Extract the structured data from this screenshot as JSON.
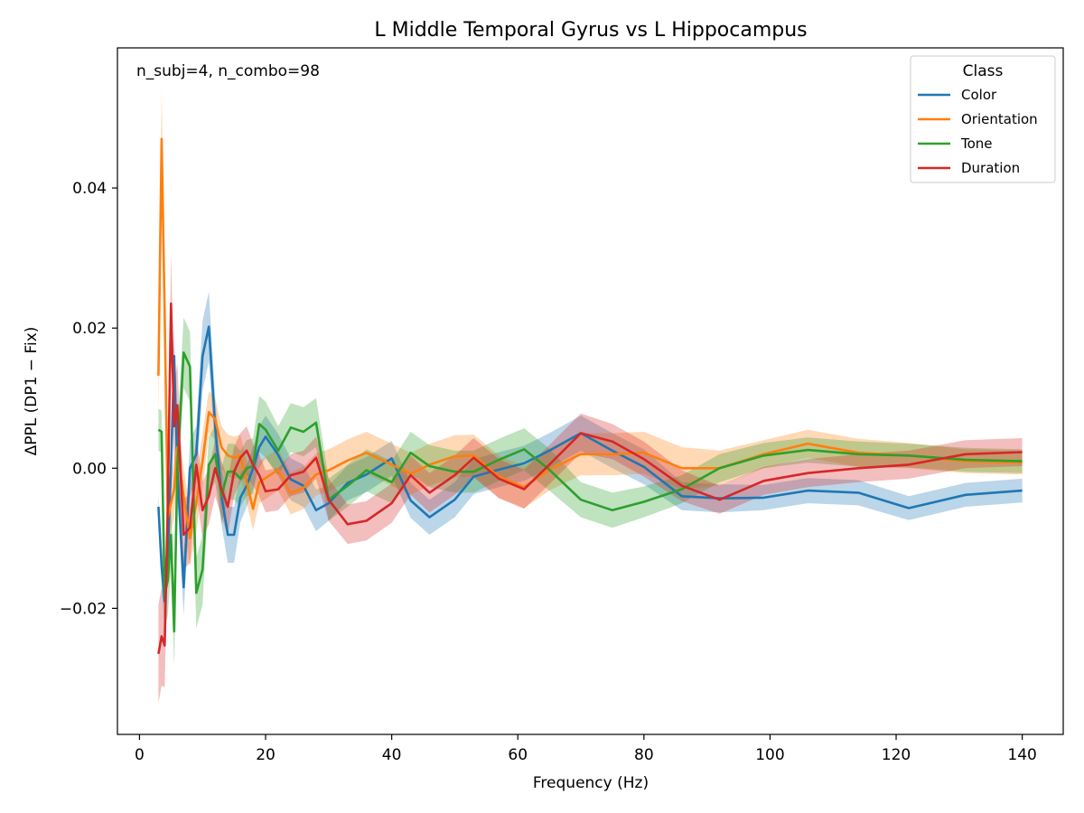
{
  "chart_data": {
    "type": "line",
    "title": "L Middle Temporal Gyrus vs L Hippocampus",
    "annotation": "n_subj=4, n_combo=98",
    "xlabel": "Frequency (Hz)",
    "ylabel": "ΔPPL (DP1 − Fix)",
    "xlim": [
      -3.5,
      146.5
    ],
    "ylim": [
      -0.038,
      0.06
    ],
    "xticks": [
      0,
      20,
      40,
      60,
      80,
      100,
      120,
      140
    ],
    "xtick_labels": [
      "0",
      "20",
      "40",
      "60",
      "80",
      "100",
      "120",
      "140"
    ],
    "yticks": [
      -0.02,
      0.0,
      0.02,
      0.04
    ],
    "ytick_labels": [
      "−0.02",
      "0.00",
      "0.02",
      "0.04"
    ],
    "grid": false,
    "legend": {
      "title": "Class",
      "placement": "top-right"
    },
    "series": [
      {
        "name": "Color",
        "color": "#1f77b4",
        "x": [
          3,
          3.5,
          4,
          4.5,
          5,
          5.5,
          6,
          7,
          8,
          9,
          10,
          11,
          12,
          13,
          14,
          15,
          16,
          17,
          18,
          19,
          20,
          22,
          24,
          26,
          28,
          30,
          33,
          36,
          40,
          43,
          46,
          50,
          53,
          57,
          61,
          65,
          70,
          75,
          80,
          86,
          92,
          99,
          106,
          114,
          122,
          131,
          140
        ],
        "y": [
          -0.0055,
          -0.014,
          -0.019,
          -0.012,
          0.0,
          0.016,
          0.0,
          -0.017,
          0.0,
          0.002,
          0.016,
          0.0202,
          0.006,
          -0.004,
          -0.0095,
          -0.0095,
          -0.0042,
          -0.0025,
          0.0,
          0.003,
          0.0045,
          0.0019,
          -0.0016,
          -0.0025,
          -0.006,
          -0.005,
          -0.0021,
          -0.0009,
          0.0014,
          -0.0046,
          -0.007,
          -0.0045,
          -0.0012,
          -0.0002,
          0.0007,
          0.0025,
          0.005,
          0.0025,
          0.0002,
          -0.004,
          -0.0043,
          -0.0042,
          -0.0032,
          -0.0035,
          -0.0057,
          -0.0038,
          -0.0032
        ],
        "band": [
          0.0017,
          0.003,
          0.004,
          0.004,
          0.004,
          0.004,
          0.004,
          0.004,
          0.004,
          0.004,
          0.005,
          0.005,
          0.004,
          0.004,
          0.004,
          0.004,
          0.0035,
          0.003,
          0.003,
          0.003,
          0.003,
          0.003,
          0.003,
          0.003,
          0.003,
          0.0025,
          0.0025,
          0.0025,
          0.0025,
          0.0025,
          0.0025,
          0.0025,
          0.0025,
          0.0025,
          0.0025,
          0.0025,
          0.0025,
          0.0025,
          0.0025,
          0.002,
          0.002,
          0.0018,
          0.0018,
          0.0018,
          0.0017,
          0.0017,
          0.0017
        ]
      },
      {
        "name": "Orientation",
        "color": "#ff7f0e",
        "x": [
          3,
          3.5,
          4,
          4.5,
          5,
          5.5,
          6,
          7,
          8,
          9,
          10,
          11,
          12,
          13,
          14,
          15,
          16,
          17,
          18,
          19,
          20,
          22,
          24,
          26,
          28,
          30,
          33,
          36,
          40,
          43,
          46,
          50,
          53,
          57,
          61,
          65,
          70,
          75,
          80,
          86,
          92,
          99,
          106,
          114,
          122,
          131,
          140
        ],
        "y": [
          0.0132,
          0.047,
          0.022,
          -0.007,
          -0.005,
          -0.003,
          0.003,
          -0.004,
          -0.01,
          -0.005,
          0.001,
          0.008,
          0.007,
          0.003,
          0.0018,
          0.0015,
          0.0018,
          -0.002,
          -0.0058,
          -0.002,
          -0.0014,
          -0.0002,
          -0.0036,
          -0.0028,
          -0.0009,
          -0.0003,
          0.0011,
          0.0022,
          0.0005,
          -0.0008,
          0.0005,
          0.0017,
          0.0018,
          -0.0012,
          -0.0027,
          -0.0002,
          0.002,
          0.002,
          0.0022,
          0.0,
          0.0,
          0.002,
          0.0035,
          0.0022,
          0.0018,
          0.001,
          0.0008
        ],
        "band": [
          0.006,
          0.007,
          0.006,
          0.005,
          0.004,
          0.004,
          0.004,
          0.004,
          0.004,
          0.004,
          0.004,
          0.003,
          0.003,
          0.003,
          0.003,
          0.003,
          0.003,
          0.003,
          0.003,
          0.003,
          0.003,
          0.003,
          0.003,
          0.003,
          0.003,
          0.003,
          0.003,
          0.003,
          0.003,
          0.003,
          0.003,
          0.003,
          0.003,
          0.003,
          0.003,
          0.003,
          0.003,
          0.003,
          0.003,
          0.003,
          0.0025,
          0.002,
          0.002,
          0.002,
          0.0018,
          0.0017,
          0.0017
        ]
      },
      {
        "name": "Tone",
        "color": "#2ca02c",
        "x": [
          3,
          3.5,
          4,
          4.5,
          5,
          5.5,
          6,
          7,
          8,
          9,
          10,
          11,
          12,
          13,
          14,
          15,
          16,
          17,
          18,
          19,
          20,
          22,
          24,
          26,
          28,
          30,
          33,
          36,
          40,
          43,
          46,
          50,
          53,
          57,
          61,
          65,
          70,
          75,
          80,
          86,
          92,
          99,
          106,
          114,
          122,
          131,
          140
        ],
        "y": [
          0.0055,
          0.0052,
          -0.018,
          -0.016,
          -0.0095,
          -0.0233,
          0.0,
          0.0165,
          0.0145,
          -0.0178,
          -0.0145,
          0.0005,
          0.002,
          -0.004,
          -0.0005,
          -0.0005,
          -0.0015,
          0.0,
          0.0003,
          0.0063,
          0.0055,
          0.0025,
          0.0058,
          0.0052,
          0.0065,
          -0.0045,
          -0.0025,
          -0.0003,
          -0.002,
          0.0022,
          0.0003,
          -0.0005,
          -0.0005,
          0.0012,
          0.0027,
          -0.0002,
          -0.0045,
          -0.006,
          -0.0048,
          -0.003,
          0.0,
          0.0018,
          0.0026,
          0.002,
          0.0018,
          0.0012,
          0.001
        ],
        "band": [
          0.003,
          0.003,
          0.005,
          0.005,
          0.005,
          0.005,
          0.005,
          0.005,
          0.005,
          0.005,
          0.005,
          0.004,
          0.004,
          0.004,
          0.004,
          0.004,
          0.004,
          0.004,
          0.004,
          0.004,
          0.004,
          0.0035,
          0.0035,
          0.0035,
          0.0035,
          0.003,
          0.003,
          0.003,
          0.003,
          0.003,
          0.003,
          0.003,
          0.003,
          0.003,
          0.003,
          0.003,
          0.0025,
          0.0025,
          0.0022,
          0.002,
          0.002,
          0.0018,
          0.0018,
          0.0018,
          0.0017,
          0.0017,
          0.0017
        ]
      },
      {
        "name": "Duration",
        "color": "#d62728",
        "x": [
          3,
          3.5,
          4,
          4.5,
          5,
          5.5,
          6,
          7,
          8,
          9,
          10,
          11,
          12,
          13,
          14,
          15,
          16,
          17,
          18,
          19,
          20,
          22,
          24,
          26,
          28,
          30,
          33,
          36,
          40,
          43,
          46,
          50,
          53,
          57,
          61,
          65,
          70,
          75,
          80,
          86,
          92,
          99,
          106,
          114,
          122,
          131,
          140
        ],
        "y": [
          -0.0265,
          -0.024,
          -0.0253,
          -0.005,
          0.0235,
          0.006,
          0.009,
          -0.0095,
          -0.0085,
          0.0005,
          -0.006,
          -0.004,
          0.0,
          -0.003,
          -0.0055,
          -0.0005,
          0.0015,
          0.0025,
          0.0005,
          -0.001,
          -0.0033,
          -0.003,
          -0.001,
          -0.0005,
          0.0015,
          -0.0045,
          -0.008,
          -0.0075,
          -0.005,
          -0.001,
          -0.0035,
          -0.001,
          0.0015,
          -0.0015,
          -0.003,
          0.0005,
          0.005,
          0.0038,
          0.0013,
          -0.0025,
          -0.0045,
          -0.0018,
          -0.0007,
          0.0,
          0.0005,
          0.002,
          0.0023
        ],
        "band": [
          0.007,
          0.007,
          0.006,
          0.006,
          0.007,
          0.006,
          0.006,
          0.005,
          0.005,
          0.004,
          0.004,
          0.004,
          0.004,
          0.004,
          0.004,
          0.0035,
          0.0035,
          0.0035,
          0.003,
          0.003,
          0.003,
          0.003,
          0.003,
          0.003,
          0.003,
          0.003,
          0.0028,
          0.0028,
          0.0028,
          0.0028,
          0.0028,
          0.0028,
          0.0028,
          0.0028,
          0.0028,
          0.0028,
          0.0028,
          0.0025,
          0.0025,
          0.0022,
          0.002,
          0.002,
          0.002,
          0.002,
          0.002,
          0.002,
          0.002
        ]
      }
    ]
  }
}
